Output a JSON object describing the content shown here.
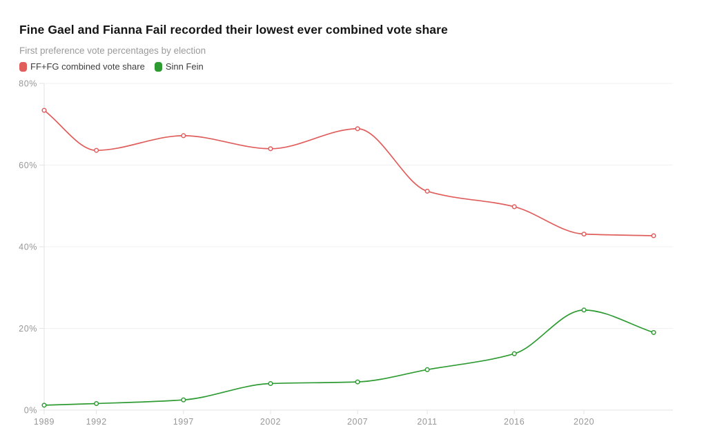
{
  "header": {
    "title": "Fine Gael and Fianna Fail recorded their lowest ever combined vote share",
    "subtitle": "First preference vote percentages by election"
  },
  "legend": [
    {
      "label": "FF+FG combined vote share",
      "color": "#e05d5c"
    },
    {
      "label": "Sinn Fein",
      "color": "#2d9b32"
    }
  ],
  "chart_data": {
    "type": "line",
    "title": "Fine Gael and Fianna Fail recorded their lowest ever combined vote share",
    "subtitle": "First preference vote percentages by election",
    "x": [
      1989,
      1992,
      1997,
      2002,
      2007,
      2011,
      2016,
      2020,
      2024
    ],
    "series": [
      {
        "name": "FF+FG combined vote share",
        "color": "#e05d5c",
        "values": [
          73.4,
          63.6,
          67.2,
          64.0,
          68.9,
          53.6,
          49.8,
          43.1,
          42.7
        ]
      },
      {
        "name": "Sinn Fein",
        "color": "#2d9b32",
        "values": [
          1.2,
          1.6,
          2.5,
          6.5,
          6.9,
          9.9,
          13.8,
          24.5,
          19.0
        ]
      }
    ],
    "x_ticks": [
      1989,
      1992,
      1997,
      2002,
      2007,
      2011,
      2016,
      2020
    ],
    "x_tick_labels": [
      "1989",
      "1992",
      "1997",
      "2002",
      "2007",
      "2011",
      "2016",
      "2020"
    ],
    "y_ticks": [
      0,
      20,
      40,
      60,
      80
    ],
    "y_tick_labels": [
      "0%",
      "20%",
      "40%",
      "60%",
      "80%"
    ],
    "ylim": [
      0,
      80
    ],
    "xlim": [
      1989,
      2025.1
    ],
    "grid": true,
    "legend_position": "top",
    "curve": "smooth-monotone",
    "marker": "open-circle"
  },
  "colors": {
    "background": "#ffffff",
    "title": "#141414",
    "subtitle": "#9b9b9b",
    "axis_line": "#e3e3e3",
    "grid_line": "#f1f1f1",
    "tick_label": "#979797",
    "marker_fill": "#ffffff"
  }
}
